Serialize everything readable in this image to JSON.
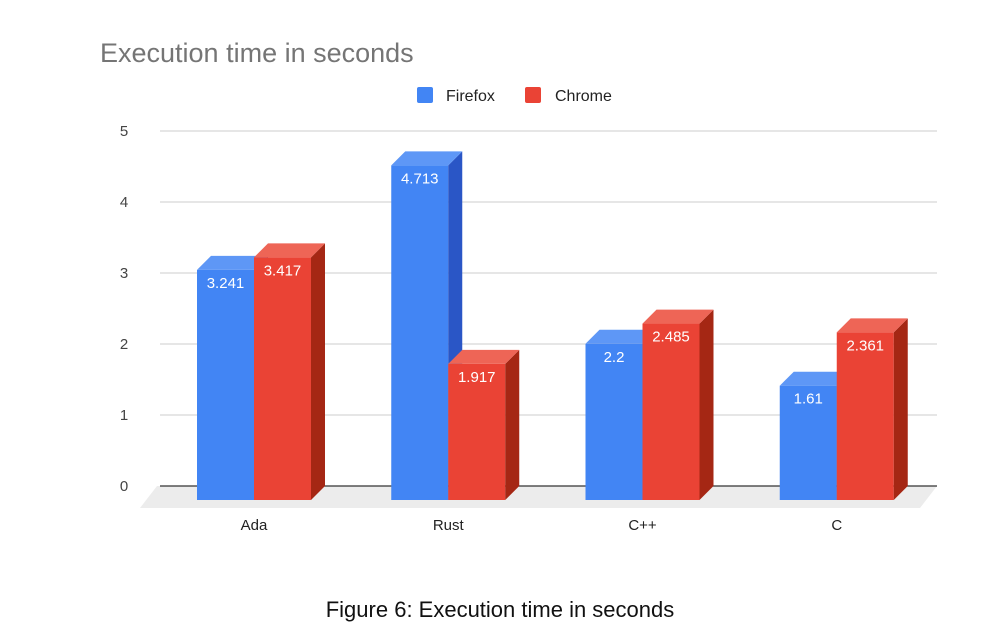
{
  "caption": "Figure 6: Execution time in seconds",
  "chart_data": {
    "type": "bar",
    "title": "Execution time in seconds",
    "xlabel": "",
    "ylabel": "",
    "categories": [
      "Ada",
      "Rust",
      "C++",
      "C"
    ],
    "series": [
      {
        "name": "Firefox",
        "values": [
          3.241,
          4.713,
          2.2,
          1.61
        ],
        "color": "#4285f4",
        "top_color": "#5e97f6",
        "side_color": "#2a56c6"
      },
      {
        "name": "Chrome",
        "values": [
          3.417,
          1.917,
          2.485,
          2.361
        ],
        "color": "#ea4335",
        "top_color": "#ee6556",
        "side_color": "#a52714"
      }
    ],
    "ylim": [
      0,
      5
    ],
    "yticks": [
      0,
      1,
      2,
      3,
      4,
      5
    ],
    "grid": true,
    "legend": "top-center",
    "style": "3d"
  }
}
